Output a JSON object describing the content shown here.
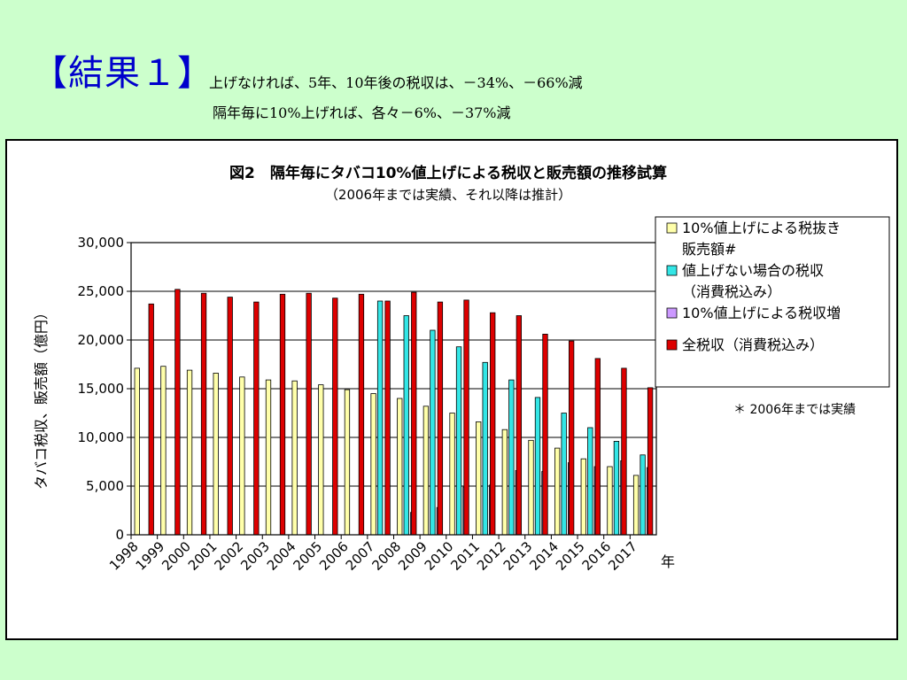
{
  "slide": {
    "title": "【結果１】",
    "summary_line1": "上げなければ、5年、10年後の税収は、－34%、－66%減",
    "summary_line2": "隔年毎に10%上げれば、各々－6%、－37%減"
  },
  "note": "＊ 2006年までは実績",
  "colors": {
    "background": "#ccffcc",
    "series_sales": "#ffffaa",
    "series_tax_no_increase": "#33e6e6",
    "series_tax_increase_gain": "#cc99ff",
    "series_total_tax": "#dd0000",
    "title": "#0000cc"
  },
  "chart_data": {
    "type": "bar",
    "title": "図2　隔年毎にタバコ10%値上げによる税収と販売額の推移試算",
    "subtitle": "（2006年までは実績、それ以降は推計）",
    "ylabel": "タバコ税収、販売額（億円）",
    "xlabel": "年",
    "ylim": [
      0,
      30000
    ],
    "yticks": [
      0,
      5000,
      10000,
      15000,
      20000,
      25000,
      30000
    ],
    "ytick_labels": [
      "0",
      "5,000",
      "10,000",
      "15,000",
      "20,000",
      "25,000",
      "30,000"
    ],
    "categories": [
      "1998",
      "1999",
      "2000",
      "2001",
      "2002",
      "2003",
      "2004",
      "2005",
      "2006",
      "2007",
      "2008",
      "2009",
      "2010",
      "2011",
      "2012",
      "2013",
      "2014",
      "2015",
      "2016",
      "2017"
    ],
    "grid": true,
    "legend_position": "top-right",
    "series": [
      {
        "name": "10%値上げによる税抜き販売額#",
        "legend_lines": [
          "10%値上げによる税抜き",
          "販売額#"
        ],
        "color": "#ffffaa",
        "values": [
          17100,
          17300,
          16900,
          16600,
          16200,
          15900,
          15800,
          15400,
          14900,
          14500,
          14000,
          13200,
          12500,
          11600,
          10800,
          9700,
          8900,
          7800,
          7000,
          6100
        ]
      },
      {
        "name": "値上げない場合の税収（消費税込み）",
        "legend_lines": [
          "値上げない場合の税収",
          "（消費税込み）"
        ],
        "color": "#33e6e6",
        "values": [
          null,
          null,
          null,
          null,
          null,
          null,
          null,
          null,
          null,
          24000,
          22500,
          21000,
          19300,
          17700,
          15900,
          14100,
          12500,
          11000,
          9600,
          8200
        ]
      },
      {
        "name": "10%値上げによる税収増",
        "legend_lines": [
          "10%値上げによる税収増"
        ],
        "color": "#cc99ff",
        "values": [
          null,
          null,
          null,
          null,
          null,
          null,
          null,
          null,
          null,
          null,
          2300,
          2800,
          4900,
          5100,
          6600,
          6500,
          7400,
          7000,
          7600,
          6900
        ]
      },
      {
        "name": "全税収（消費税込み）",
        "legend_lines": [
          "全税収（消費税込み）"
        ],
        "color": "#dd0000",
        "values": [
          23700,
          25200,
          24800,
          24400,
          23900,
          24700,
          24800,
          24300,
          24700,
          24000,
          24900,
          23900,
          24100,
          22800,
          22500,
          20600,
          19900,
          18100,
          17100,
          15100
        ]
      }
    ]
  }
}
